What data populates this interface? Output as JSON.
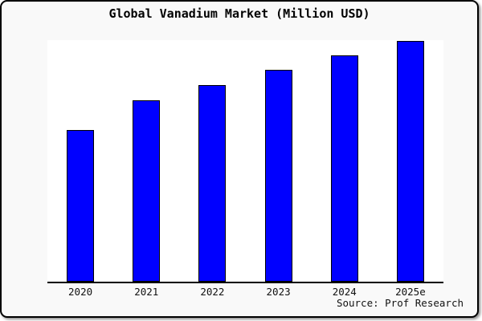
{
  "figure": {
    "title": "Global Vanadium Market (Million USD)",
    "source": "Source: Prof Research"
  },
  "colors": {
    "figure_background": "#f9f9f9",
    "plot_background": "#ffffff",
    "bar_fill": "#0000ff",
    "bar_edge": "#000000",
    "axis_line": "#000000",
    "title_text": "#000000",
    "tick_text": "#111111",
    "figure_border": "#000000"
  },
  "chart_data": {
    "type": "bar",
    "title": "Global Vanadium Market (Million USD)",
    "categories": [
      "2020",
      "2021",
      "2022",
      "2023",
      "2024",
      "2025e"
    ],
    "values": [
      63,
      75.5,
      81.7,
      88,
      94,
      100
    ],
    "values_unit": "relative index (tallest bar = 100; y-axis has no tick labels)",
    "xlabel": "",
    "ylabel": "",
    "ylim": [
      0,
      100
    ],
    "y_axis_visible": false,
    "grid": false,
    "legend": false,
    "bar_color": "#0000ff",
    "bar_edge_color": "#000000",
    "annotation": "Source: Prof Research"
  }
}
